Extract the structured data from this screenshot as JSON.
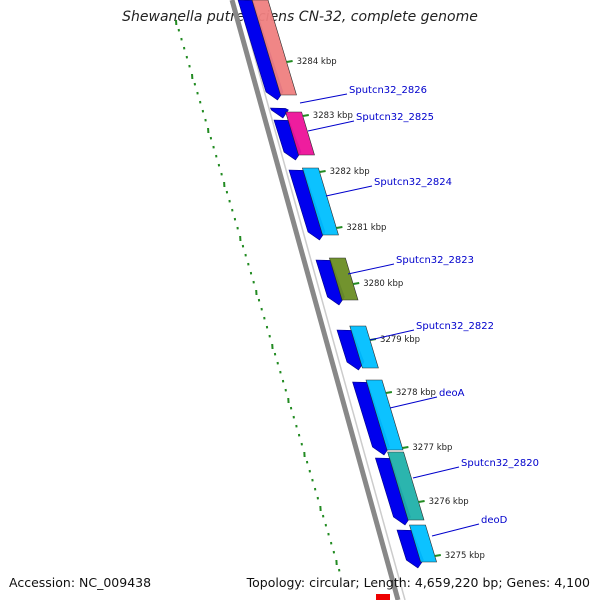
{
  "title": "Shewanella putrefaciens CN-32, complete genome",
  "accession_text": "Accession: NC_009438",
  "summary_text": "Topology: circular; Length: 4,659,220 bp; Genes: 4,100",
  "colors": {
    "backbone": "#888888",
    "tick": "#228b22",
    "label": "#0000cc",
    "cds": "#0000ee"
  },
  "ticks": [
    {
      "label": "3284 kbp"
    },
    {
      "label": "3283 kbp"
    },
    {
      "label": "3282 kbp"
    },
    {
      "label": "3281 kbp"
    },
    {
      "label": "3280 kbp"
    },
    {
      "label": "3279 kbp"
    },
    {
      "label": "3278 kbp"
    },
    {
      "label": "3277 kbp"
    },
    {
      "label": "3276 kbp"
    },
    {
      "label": "3275 kbp"
    }
  ],
  "gene_labels": [
    {
      "name": "Sputcn32_2826"
    },
    {
      "name": "Sputcn32_2825"
    },
    {
      "name": "Sputcn32_2824"
    },
    {
      "name": "Sputcn32_2823"
    },
    {
      "name": "Sputcn32_2822"
    },
    {
      "name": "deoA"
    },
    {
      "name": "Sputcn32_2820"
    },
    {
      "name": "deoD"
    }
  ],
  "features": [
    {
      "color": "#f08080"
    },
    {
      "color": "#ee1199"
    },
    {
      "color": "#00bfff"
    },
    {
      "color": "#6b8e23"
    },
    {
      "color": "#00bfff"
    },
    {
      "color": "#00bfff"
    },
    {
      "color": "#20b2aa"
    },
    {
      "color": "#00bfff"
    }
  ]
}
